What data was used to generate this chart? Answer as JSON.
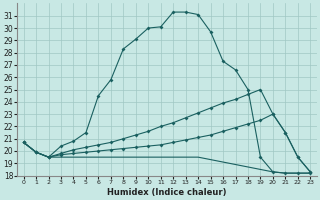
{
  "xlabel": "Humidex (Indice chaleur)",
  "background_color": "#c8e8e4",
  "grid_color": "#a0c8c4",
  "line_color": "#1a6060",
  "xlim": [
    -0.5,
    23.5
  ],
  "ylim": [
    18,
    32
  ],
  "xticks": [
    0,
    1,
    2,
    3,
    4,
    5,
    6,
    7,
    8,
    9,
    10,
    11,
    12,
    13,
    14,
    15,
    16,
    17,
    18,
    19,
    20,
    21,
    22,
    23
  ],
  "yticks": [
    18,
    19,
    20,
    21,
    22,
    23,
    24,
    25,
    26,
    27,
    28,
    29,
    30,
    31
  ],
  "line1_x": [
    0,
    1,
    2,
    3,
    4,
    5,
    6,
    7,
    8,
    9,
    10,
    11,
    12,
    13,
    14,
    15,
    16,
    17,
    18,
    19,
    20,
    21,
    22,
    23
  ],
  "line1_y": [
    20.7,
    19.9,
    19.5,
    20.4,
    20.8,
    21.5,
    24.5,
    25.8,
    28.3,
    29.1,
    30.0,
    30.1,
    31.3,
    31.3,
    31.1,
    29.7,
    27.3,
    26.6,
    25.0,
    19.5,
    18.3,
    18.2,
    18.2,
    18.2
  ],
  "line2_x": [
    0,
    1,
    2,
    3,
    4,
    5,
    6,
    7,
    8,
    9,
    10,
    11,
    12,
    13,
    14,
    15,
    16,
    17,
    18,
    19,
    20,
    21,
    22,
    23
  ],
  "line2_y": [
    20.7,
    19.9,
    19.5,
    19.8,
    20.1,
    20.3,
    20.5,
    20.7,
    21.0,
    21.3,
    21.6,
    22.0,
    22.3,
    22.7,
    23.1,
    23.5,
    23.9,
    24.2,
    24.6,
    25.0,
    23.0,
    21.5,
    19.5,
    18.3
  ],
  "line3_x": [
    0,
    1,
    2,
    3,
    4,
    5,
    6,
    7,
    8,
    9,
    10,
    11,
    12,
    13,
    14,
    15,
    16,
    17,
    18,
    19,
    20,
    21,
    22,
    23
  ],
  "line3_y": [
    20.7,
    19.9,
    19.5,
    19.7,
    19.8,
    19.9,
    20.0,
    20.1,
    20.2,
    20.3,
    20.4,
    20.5,
    20.7,
    20.9,
    21.1,
    21.3,
    21.6,
    21.9,
    22.2,
    22.5,
    23.0,
    21.5,
    19.5,
    18.3
  ],
  "line4_x": [
    0,
    1,
    2,
    3,
    4,
    5,
    6,
    7,
    8,
    9,
    10,
    11,
    12,
    13,
    14,
    15,
    16,
    17,
    18,
    19,
    20,
    21,
    22,
    23
  ],
  "line4_y": [
    20.7,
    19.9,
    19.5,
    19.5,
    19.5,
    19.5,
    19.5,
    19.5,
    19.5,
    19.5,
    19.5,
    19.5,
    19.5,
    19.5,
    19.5,
    19.3,
    19.1,
    18.9,
    18.7,
    18.5,
    18.3,
    18.2,
    18.2,
    18.2
  ]
}
